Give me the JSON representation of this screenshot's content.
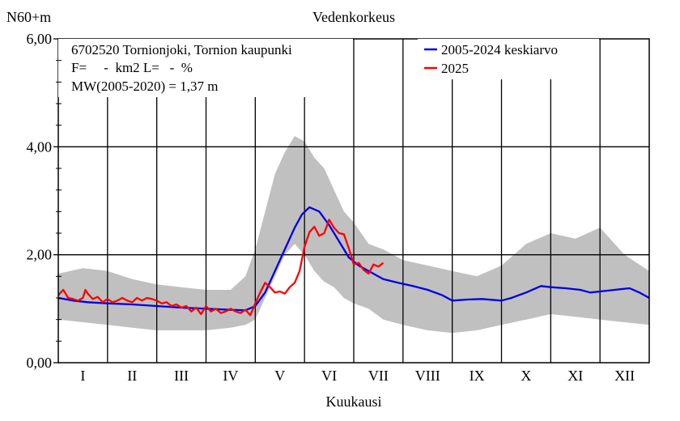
{
  "chart_data": {
    "type": "line",
    "title": "Vedenkorkeus",
    "ylabel": "N60+m",
    "xlabel": "Kuukausi",
    "ylim": [
      0,
      6
    ],
    "xlim": [
      0,
      12
    ],
    "yticks": [
      "0,00",
      "2,00",
      "4,00",
      "6,00"
    ],
    "months": [
      "I",
      "II",
      "III",
      "IV",
      "V",
      "VI",
      "VII",
      "VIII",
      "IX",
      "X",
      "XI",
      "XII"
    ],
    "info_lines": [
      "6702520 Tornionjoki, Tornion kaupunki",
      "F=     -  km2 L=   -  %",
      "MW(2005-2020) = 1,37 m"
    ],
    "grid": true,
    "legend_position": "top-right",
    "colors": {
      "mean": "#0000e6",
      "current": "#ff0000",
      "range": "#c0c0c0"
    },
    "range_band": {
      "x": [
        0,
        0.5,
        1,
        1.5,
        2,
        2.5,
        3,
        3.5,
        3.8,
        4.0,
        4.2,
        4.4,
        4.6,
        4.8,
        5.0,
        5.2,
        5.4,
        5.6,
        5.8,
        6.0,
        6.3,
        6.6,
        7.0,
        7.5,
        8.0,
        8.5,
        9.0,
        9.5,
        10.0,
        10.5,
        11.0,
        11.5,
        12.0
      ],
      "upper": [
        1.65,
        1.75,
        1.7,
        1.55,
        1.45,
        1.4,
        1.35,
        1.35,
        1.6,
        2.1,
        2.8,
        3.5,
        3.9,
        4.2,
        4.1,
        3.8,
        3.6,
        3.2,
        2.8,
        2.6,
        2.2,
        2.1,
        1.9,
        1.8,
        1.7,
        1.6,
        1.8,
        2.2,
        2.4,
        2.3,
        2.5,
        2.0,
        1.7
      ],
      "lower": [
        0.8,
        0.75,
        0.7,
        0.65,
        0.6,
        0.6,
        0.6,
        0.65,
        0.7,
        0.8,
        1.2,
        1.6,
        2.0,
        2.2,
        2.0,
        1.7,
        1.5,
        1.4,
        1.2,
        1.1,
        1.0,
        0.8,
        0.7,
        0.6,
        0.55,
        0.6,
        0.7,
        0.8,
        0.9,
        0.85,
        0.8,
        0.75,
        0.7
      ]
    },
    "series": [
      {
        "name": "2005-2024 keskiarvo",
        "x": [
          0,
          0.3,
          0.6,
          1.0,
          1.5,
          2.0,
          2.5,
          3.0,
          3.5,
          3.8,
          4.0,
          4.2,
          4.4,
          4.6,
          4.8,
          4.95,
          5.1,
          5.3,
          5.5,
          5.7,
          5.9,
          6.1,
          6.3,
          6.6,
          6.9,
          7.2,
          7.5,
          7.8,
          8.0,
          8.3,
          8.6,
          9.0,
          9.2,
          9.5,
          9.8,
          10.0,
          10.3,
          10.6,
          10.8,
          11.0,
          11.3,
          11.6,
          11.8,
          12.0
        ],
        "y": [
          1.2,
          1.15,
          1.12,
          1.1,
          1.08,
          1.05,
          1.02,
          1.0,
          0.98,
          0.97,
          1.05,
          1.3,
          1.7,
          2.1,
          2.5,
          2.75,
          2.88,
          2.8,
          2.55,
          2.25,
          1.95,
          1.8,
          1.7,
          1.55,
          1.48,
          1.42,
          1.35,
          1.25,
          1.15,
          1.17,
          1.18,
          1.15,
          1.2,
          1.3,
          1.42,
          1.4,
          1.38,
          1.35,
          1.3,
          1.32,
          1.35,
          1.38,
          1.3,
          1.2
        ]
      },
      {
        "name": "2025",
        "x": [
          0,
          0.05,
          0.1,
          0.15,
          0.2,
          0.3,
          0.4,
          0.5,
          0.55,
          0.6,
          0.7,
          0.8,
          0.9,
          1.0,
          1.1,
          1.2,
          1.3,
          1.4,
          1.5,
          1.6,
          1.7,
          1.8,
          1.9,
          2.0,
          2.1,
          2.2,
          2.3,
          2.4,
          2.5,
          2.6,
          2.7,
          2.8,
          2.9,
          3.0,
          3.1,
          3.2,
          3.3,
          3.4,
          3.5,
          3.6,
          3.7,
          3.8,
          3.9,
          4.0,
          4.1,
          4.2,
          4.3,
          4.4,
          4.5,
          4.6,
          4.7,
          4.8,
          4.9,
          5.0,
          5.1,
          5.2,
          5.3,
          5.4,
          5.5,
          5.6,
          5.7,
          5.8,
          5.9,
          6.0,
          6.1,
          6.2,
          6.3,
          6.4,
          6.5,
          6.6
        ],
        "y": [
          1.25,
          1.3,
          1.35,
          1.28,
          1.2,
          1.18,
          1.15,
          1.2,
          1.35,
          1.28,
          1.18,
          1.22,
          1.12,
          1.18,
          1.12,
          1.15,
          1.2,
          1.15,
          1.12,
          1.2,
          1.15,
          1.2,
          1.18,
          1.15,
          1.1,
          1.12,
          1.05,
          1.08,
          1.02,
          1.05,
          0.95,
          1.02,
          0.9,
          1.05,
          0.95,
          1.0,
          0.92,
          0.95,
          1.0,
          0.95,
          0.92,
          0.98,
          0.88,
          1.1,
          1.3,
          1.48,
          1.4,
          1.3,
          1.32,
          1.28,
          1.4,
          1.48,
          1.7,
          2.15,
          2.42,
          2.52,
          2.35,
          2.4,
          2.65,
          2.5,
          2.4,
          2.38,
          2.12,
          1.82,
          1.85,
          1.72,
          1.65,
          1.82,
          1.78,
          1.85
        ]
      }
    ]
  }
}
